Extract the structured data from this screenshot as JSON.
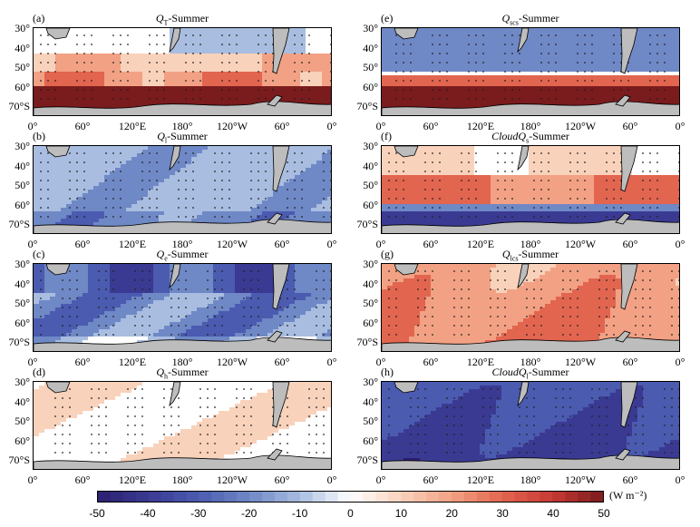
{
  "panels": [
    {
      "id": "a",
      "label": "(a)",
      "title_sym": "Q",
      "title_sub": "T",
      "title_rest": "-Summer",
      "pattern": "qt"
    },
    {
      "id": "b",
      "label": "(b)",
      "title_sym": "Q",
      "title_sub": "l",
      "title_rest": "-Summer",
      "pattern": "ql"
    },
    {
      "id": "c",
      "label": "(c)",
      "title_sym": "Q",
      "title_sub": "e",
      "title_rest": "-Summer",
      "pattern": "qe"
    },
    {
      "id": "d",
      "label": "(d)",
      "title_sym": "Q",
      "title_sub": "h",
      "title_rest": "-Summer",
      "pattern": "qh"
    },
    {
      "id": "e",
      "label": "(e)",
      "title_sym": "Q",
      "title_sub": "scs",
      "title_rest": "-Summer",
      "pattern": "qscs"
    },
    {
      "id": "f",
      "label": "(f)",
      "title_sym": "CloudQ",
      "title_sub": "s",
      "title_rest": "-Summer",
      "pattern": "cqs"
    },
    {
      "id": "g",
      "label": "(g)",
      "title_sym": "Q",
      "title_sub": "lcs",
      "title_rest": "-Summer",
      "pattern": "qlcs"
    },
    {
      "id": "h",
      "label": "(h)",
      "title_sym": "CloudQ",
      "title_sub": "l",
      "title_rest": "-Summer",
      "pattern": "cql"
    }
  ],
  "y_ticks": [
    "30°",
    "40°",
    "50°",
    "60°",
    "70°S"
  ],
  "x_ticks": [
    "0°",
    "60°",
    "120°E",
    "180°",
    "120°W",
    "60°",
    "0°"
  ],
  "colorbar": {
    "ticks": [
      "-50",
      "-40",
      "-30",
      "-20",
      "-10",
      "0",
      "10",
      "20",
      "30",
      "40",
      "50"
    ],
    "unit": "(W m⁻²)",
    "colors": [
      "#2b1f6e",
      "#3a3a93",
      "#4b5bb0",
      "#6f88c6",
      "#a8bde0",
      "#ffffff",
      "#f9d2bb",
      "#f2a184",
      "#e2654f",
      "#c73a35",
      "#7a1b1d"
    ]
  }
}
